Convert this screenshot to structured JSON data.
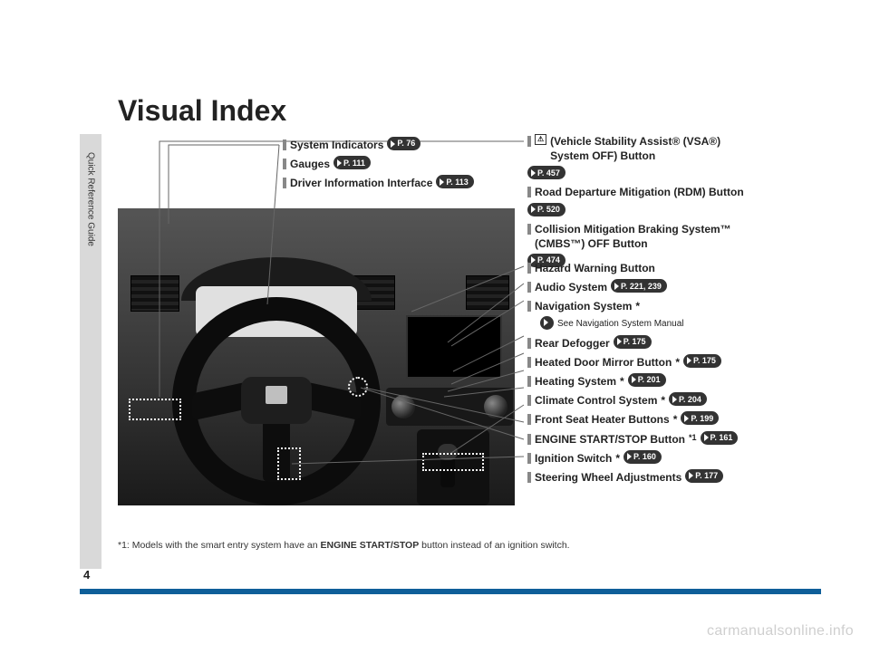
{
  "title": "Visual Index",
  "sideTab": "Quick Reference Guide",
  "pageNumber": "4",
  "watermark": "carmanualsonline.info",
  "footnote": {
    "prefix": "*1: Models with the smart entry system have an ",
    "bold": "ENGINE START/STOP",
    "suffix": " button instead of an ignition switch."
  },
  "calloutsTop": [
    {
      "label": "System Indicators",
      "page": "P. 76"
    },
    {
      "label": "Gauges",
      "page": "P. 111"
    },
    {
      "label": "Driver Information Interface",
      "page": "P. 113"
    }
  ],
  "calloutsRightTop": [
    {
      "iconLabel": "⚠",
      "label": " (Vehicle Stability Assist® (VSA®) System OFF) Button",
      "page": "P. 457"
    },
    {
      "label": "Road Departure Mitigation (RDM) Button",
      "page": "P. 520"
    },
    {
      "label": "Collision Mitigation Braking System™ (CMBS™) OFF Button",
      "page": "P. 474"
    }
  ],
  "calloutsRight": [
    {
      "label": "Hazard Warning Button"
    },
    {
      "label": "Audio System",
      "page": "P. 221, 239"
    },
    {
      "label": "Navigation System",
      "ast": "*",
      "subtext": "See Navigation System Manual"
    },
    {
      "label": "Rear Defogger",
      "page": "P. 175"
    },
    {
      "label": "Heated Door Mirror Button",
      "ast": "*",
      "page": "P. 175"
    },
    {
      "label": "Heating System",
      "ast": "*",
      "page": "P. 201"
    },
    {
      "label": "Climate Control System",
      "ast": "*",
      "page": "P. 204"
    },
    {
      "label": "Front Seat Heater Buttons",
      "ast": "*",
      "page": "P. 199"
    },
    {
      "label": "ENGINE START/STOP Button",
      "sup": "*1",
      "page": "P. 161"
    },
    {
      "label": "Ignition Switch",
      "ast": "*",
      "page": "P. 160"
    },
    {
      "label": "Steering Wheel Adjustments",
      "page": "P. 177"
    }
  ]
}
